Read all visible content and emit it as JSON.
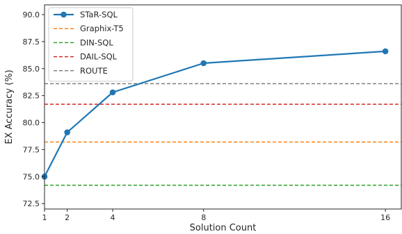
{
  "chart_data": {
    "type": "line",
    "xlabel": "Solution Count",
    "ylabel": "EX Accuracy (%)",
    "xlim": [
      1,
      16.7
    ],
    "ylim": [
      72,
      90.9
    ],
    "xticks": [
      1,
      2,
      4,
      8,
      16
    ],
    "xtick_labels": [
      "1",
      "2",
      "4",
      "8",
      "16"
    ],
    "yticks": [
      72.5,
      75.0,
      77.5,
      80.0,
      82.5,
      85.0,
      87.5,
      90.0
    ],
    "ytick_labels": [
      "72.5",
      "75.0",
      "77.5",
      "80.0",
      "82.5",
      "85.0",
      "87.5",
      "90.0"
    ],
    "grid": false,
    "legend_position": "top-left",
    "series": [
      {
        "name": "STaR-SQL",
        "kind": "line-marker",
        "color": "#1f77b4",
        "x": [
          1,
          2,
          4,
          8,
          16
        ],
        "y": [
          75.0,
          79.1,
          82.8,
          85.5,
          86.6
        ]
      },
      {
        "name": "Graphix-T5",
        "kind": "hline",
        "color": "#ff7f0e",
        "y": 78.2
      },
      {
        "name": "DIN-SQL",
        "kind": "hline",
        "color": "#2ca02c",
        "y": 74.2
      },
      {
        "name": "DAIL-SQL",
        "kind": "hline",
        "color": "#d62728",
        "y": 81.7
      },
      {
        "name": "ROUTE",
        "kind": "hline",
        "color": "#7f7f7f",
        "y": 83.6
      }
    ]
  }
}
